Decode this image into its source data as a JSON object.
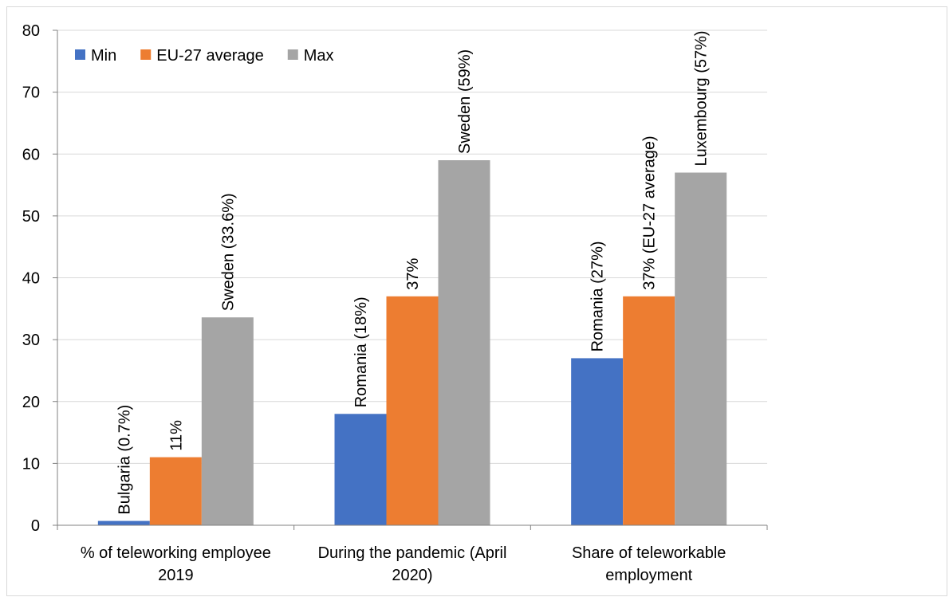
{
  "chart_data": {
    "type": "bar",
    "categories": [
      [
        "% of teleworking employee",
        "2019"
      ],
      [
        "During the pandemic (April",
        "2020)"
      ],
      [
        "Share of teleworkable",
        "employment"
      ]
    ],
    "series": [
      {
        "name": "Min",
        "color": "#4472c4",
        "values": [
          0.7,
          18,
          27
        ],
        "labels": [
          "Bulgaria (0.7%)",
          "Romania (18%)",
          "Romania (27%)"
        ]
      },
      {
        "name": "EU-27 average",
        "color": "#ed7d31",
        "values": [
          11,
          37,
          37
        ],
        "labels": [
          "11%",
          "37%",
          "37% (EU-27 average)"
        ]
      },
      {
        "name": "Max",
        "color": "#a5a5a5",
        "values": [
          33.6,
          59,
          57
        ],
        "labels": [
          "Sweden (33.6%)",
          "Sweden (59%)",
          "Luxembourg (57%)"
        ]
      }
    ],
    "ylim": [
      0,
      80
    ],
    "yticks": [
      0,
      10,
      20,
      30,
      40,
      50,
      60,
      70,
      80
    ],
    "grid": true,
    "legend_position": "top-left"
  }
}
